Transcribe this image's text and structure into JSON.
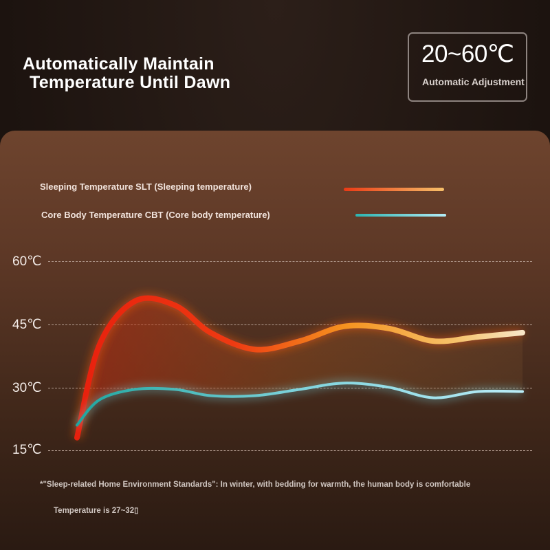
{
  "headline": {
    "line1": "Automatically Maintain",
    "line2": "Temperature Until Dawn"
  },
  "range_box": {
    "value": "20~60℃",
    "caption": "Automatic Adjustment"
  },
  "footnote": {
    "line1": "*\"Sleep-related Home Environment Standards\": In winter, with bedding for warmth, the human body is comfortable",
    "line2": "Temperature is 27~32▯"
  },
  "colors": {
    "slt_start": "#e8200d",
    "slt_mid": "#f5681c",
    "slt_end": "#f8e6c8",
    "cbt_start": "#1fa6a0",
    "cbt_end": "#b9ecf7"
  },
  "chart_data": {
    "type": "line",
    "title": "",
    "xlabel": "",
    "ylabel": "",
    "ylim": [
      15,
      60
    ],
    "yticks": [
      60,
      45,
      30,
      15
    ],
    "ytick_labels": [
      "60℃",
      "45℃",
      "30℃",
      "15℃"
    ],
    "grid": true,
    "legend_placement": "top-left",
    "x": [
      0,
      0.05,
      0.13,
      0.22,
      0.3,
      0.4,
      0.5,
      0.6,
      0.7,
      0.8,
      0.9,
      1.0
    ],
    "series": [
      {
        "name": "Sleeping Temperature SLT (Sleeping temperature)",
        "values": [
          18,
          40,
          50.5,
          49.5,
          43,
          39,
          41,
          44.5,
          44,
          41,
          42,
          43
        ]
      },
      {
        "name": "Core Body Temperature CBT (Core body temperature)",
        "values": [
          21,
          27,
          29.5,
          29.5,
          28,
          28,
          29.5,
          31,
          30,
          27.5,
          29,
          29
        ]
      }
    ]
  }
}
